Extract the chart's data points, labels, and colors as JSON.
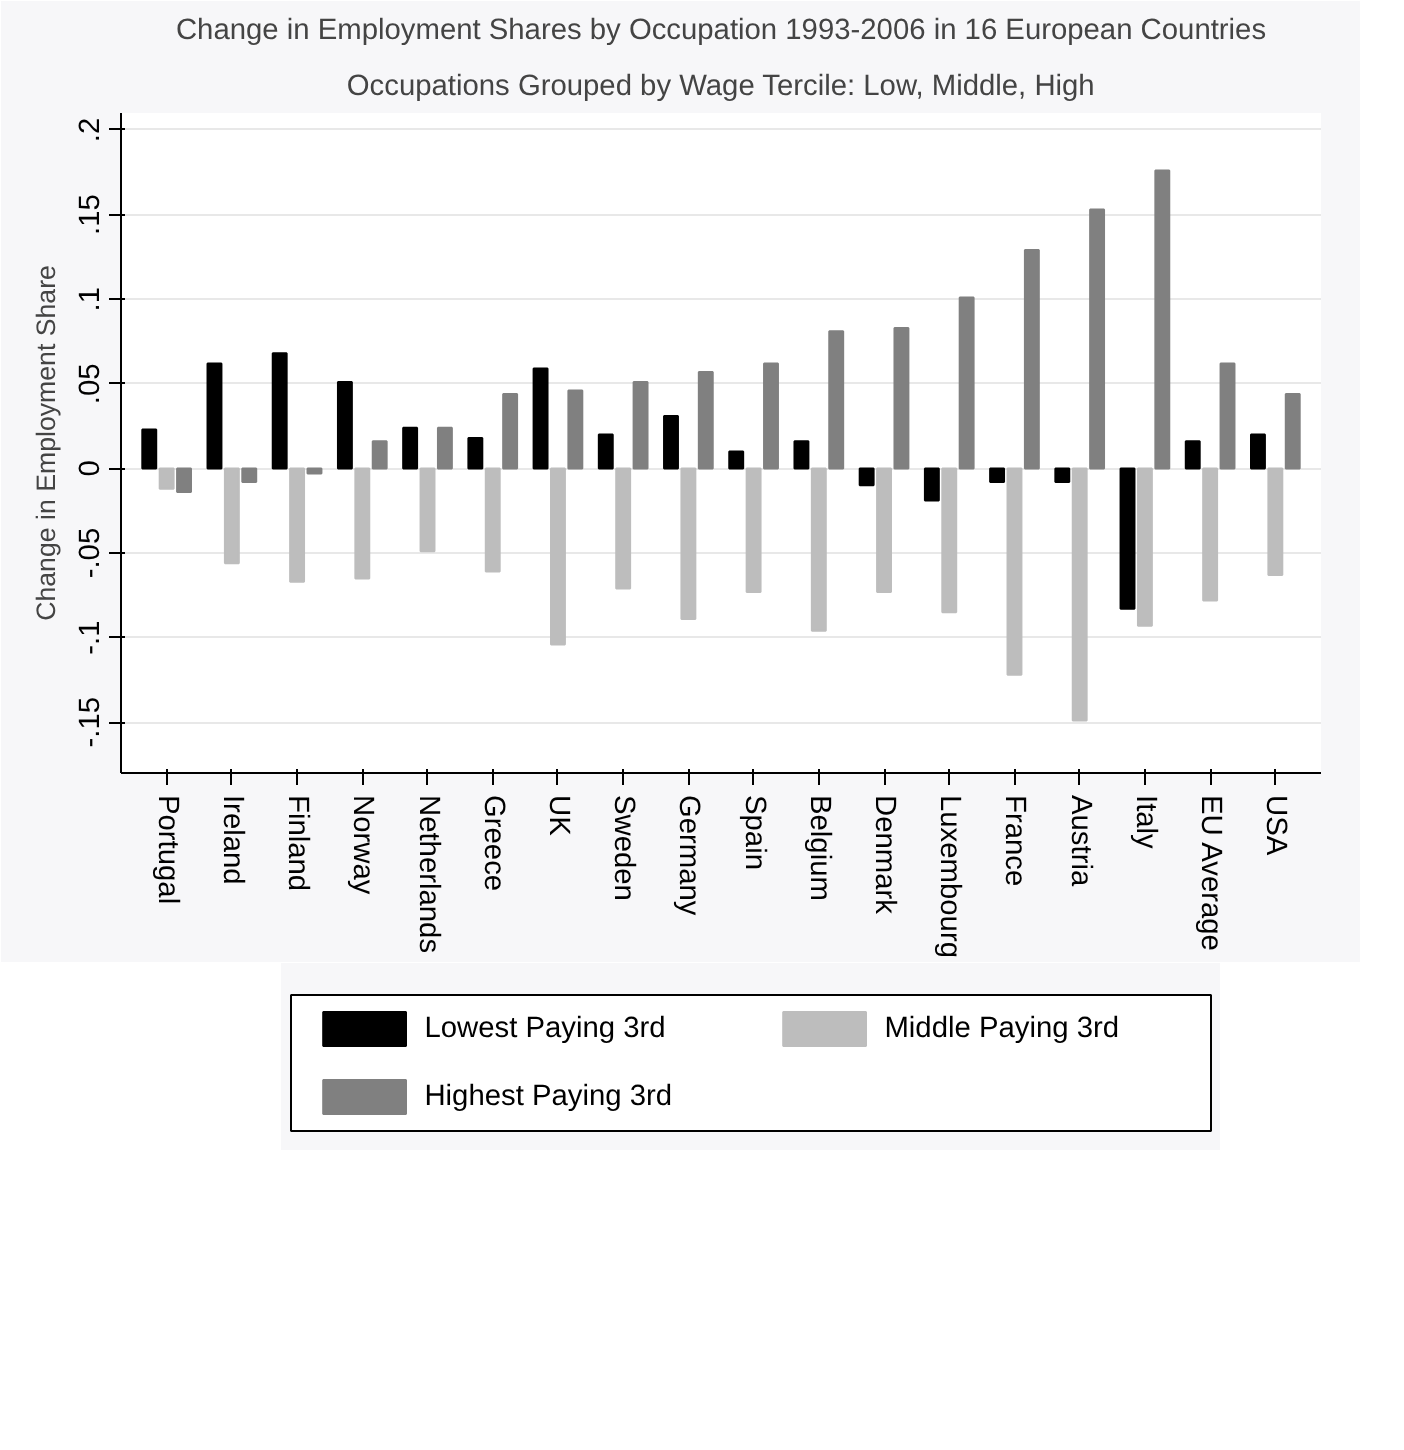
{
  "chart_data": {
    "type": "bar",
    "title": "Change in Employment Shares by Occupation 1993-2006 in 16 European Countries",
    "subtitle": "Occupations Grouped by Wage Tercile: Low, Middle, High",
    "ylabel": "Change in Employment Share",
    "categories": [
      "Portugal",
      "Ireland",
      "Finland",
      "Norway",
      "Netherlands",
      "Greece",
      "UK",
      "Sweden",
      "Germany",
      "Spain",
      "Belgium",
      "Denmark",
      "Luxembourg",
      "France",
      "Austria",
      "Italy",
      "EU Average",
      "USA"
    ],
    "series": [
      {
        "name": "Lowest Paying 3rd",
        "color": "#000000",
        "values": [
          0.023,
          0.062,
          0.068,
          0.051,
          0.024,
          0.018,
          0.059,
          0.02,
          0.031,
          0.01,
          0.016,
          -0.01,
          -0.019,
          -0.008,
          -0.008,
          -0.083,
          0.016,
          0.02
        ]
      },
      {
        "name": "Middle Paying 3rd",
        "color": "#bdbdbd",
        "values": [
          -0.012,
          -0.056,
          -0.067,
          -0.065,
          -0.049,
          -0.061,
          -0.104,
          -0.071,
          -0.089,
          -0.073,
          -0.096,
          -0.073,
          -0.085,
          -0.122,
          -0.149,
          -0.093,
          -0.078,
          -0.063
        ]
      },
      {
        "name": "Highest Paying 3rd",
        "color": "#808080",
        "values": [
          -0.014,
          -0.008,
          -0.003,
          0.016,
          0.024,
          0.044,
          0.046,
          0.051,
          0.057,
          0.062,
          0.081,
          0.083,
          0.101,
          0.129,
          0.153,
          0.176,
          0.062,
          0.044
        ]
      }
    ],
    "ylim": [
      -0.18,
      0.21
    ],
    "yticks": [
      {
        "value": -0.15,
        "label": "-.15"
      },
      {
        "value": -0.1,
        "label": "-.1"
      },
      {
        "value": -0.05,
        "label": "-.05"
      },
      {
        "value": 0,
        "label": "0"
      },
      {
        "value": 0.05,
        "label": ".05"
      },
      {
        "value": 0.1,
        "label": ".1"
      },
      {
        "value": 0.15,
        "label": ".15"
      },
      {
        "value": 0.2,
        "label": ".2"
      }
    ],
    "grid": "y",
    "legend": "bottom"
  }
}
